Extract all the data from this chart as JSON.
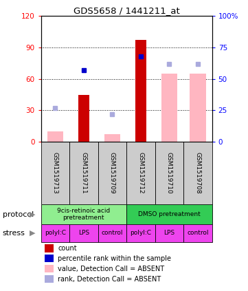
{
  "title": "GDS5658 / 1441211_at",
  "samples": [
    "GSM1519713",
    "GSM1519711",
    "GSM1519709",
    "GSM1519712",
    "GSM1519710",
    "GSM1519708"
  ],
  "count_values": [
    0,
    45,
    0,
    97,
    0,
    0
  ],
  "rank_values": [
    0,
    57,
    0,
    68,
    0,
    0
  ],
  "absent_value_values": [
    10,
    0,
    7,
    0,
    65,
    65
  ],
  "absent_rank_values": [
    27,
    0,
    22,
    0,
    62,
    62
  ],
  "protocol_groups": [
    {
      "label": "9cis-retinoic acid\npretreatment",
      "start": 0,
      "end": 3,
      "color": "#90EE90"
    },
    {
      "label": "DMSO pretreatment",
      "start": 3,
      "end": 6,
      "color": "#33CC55"
    }
  ],
  "stress_labels": [
    "polyI:C",
    "LPS",
    "control",
    "polyI:C",
    "LPS",
    "control"
  ],
  "stress_color": "#EE44EE",
  "ylim_left": [
    0,
    120
  ],
  "ylim_right": [
    0,
    100
  ],
  "yticks_left": [
    0,
    30,
    60,
    90,
    120
  ],
  "ytick_labels_left": [
    "0",
    "30",
    "60",
    "90",
    "120"
  ],
  "yticks_right": [
    0,
    25,
    50,
    75,
    100
  ],
  "ytick_labels_right": [
    "0",
    "25",
    "50",
    "75",
    "100%"
  ],
  "count_color": "#CC0000",
  "rank_color": "#0000CC",
  "absent_value_color": "#FFB6C1",
  "absent_rank_color": "#AAAADD",
  "bar_width": 0.4,
  "sample_bg_color": "#CCCCCC"
}
